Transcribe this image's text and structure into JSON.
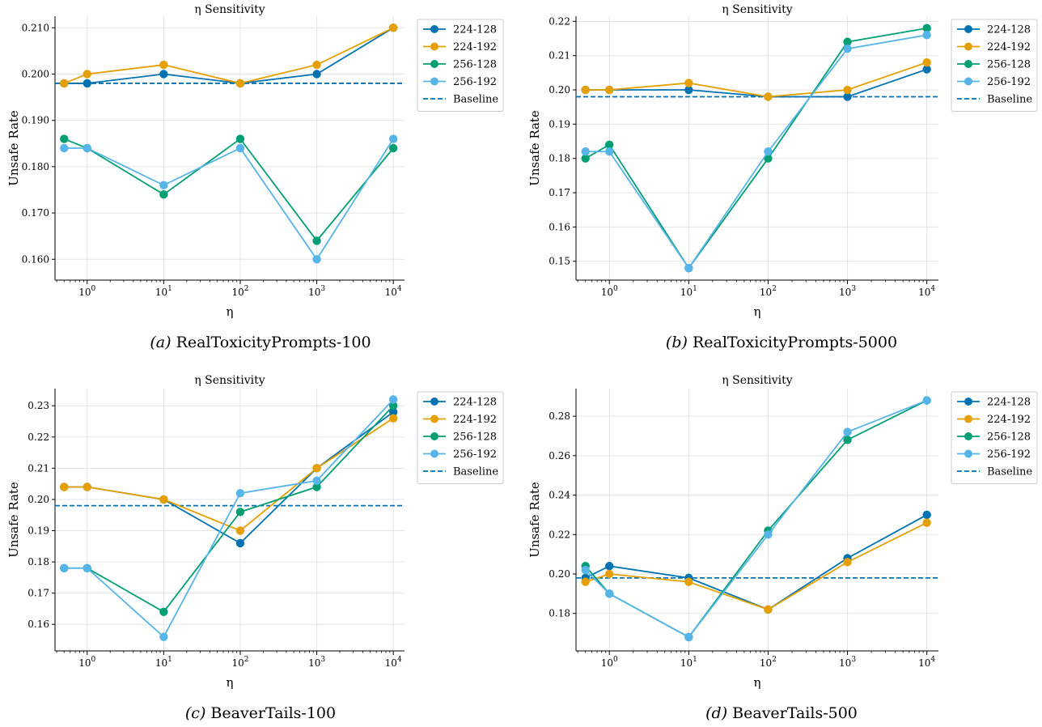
{
  "chart_data": [
    {
      "type": "line",
      "title": "η Sensitivity",
      "xlabel": "η",
      "ylabel": "Unsafe Rate",
      "x_scale": "log",
      "x": [
        0.5,
        1,
        10,
        100,
        1000,
        10000
      ],
      "xticks": [
        1,
        10,
        100,
        1000,
        10000
      ],
      "xtick_labels": [
        [
          "10",
          "0"
        ],
        [
          "10",
          "1"
        ],
        [
          "10",
          "2"
        ],
        [
          "10",
          "3"
        ],
        [
          "10",
          "4"
        ]
      ],
      "xlim": [
        0.38,
        14000
      ],
      "ylim": [
        0.1555,
        0.2125
      ],
      "yticks": [
        0.16,
        0.17,
        0.18,
        0.19,
        0.2,
        0.21
      ],
      "ytick_labels": [
        "0.160",
        "0.170",
        "0.180",
        "0.190",
        "0.200",
        "0.210"
      ],
      "legend_position": "outside-top-right",
      "baseline": {
        "name": "Baseline",
        "value": 0.198
      },
      "series": [
        {
          "name": "224-128",
          "color": "#0072B2",
          "values": [
            0.198,
            0.198,
            0.2,
            0.198,
            0.2,
            0.21
          ]
        },
        {
          "name": "224-192",
          "color": "#E69F00",
          "values": [
            0.198,
            0.2,
            0.202,
            0.198,
            0.202,
            0.21
          ]
        },
        {
          "name": "256-128",
          "color": "#009E73",
          "values": [
            0.186,
            0.184,
            0.174,
            0.186,
            0.164,
            0.184
          ]
        },
        {
          "name": "256-192",
          "color": "#56B4E9",
          "values": [
            0.184,
            0.184,
            0.176,
            0.184,
            0.16,
            0.186
          ]
        }
      ],
      "caption_letter": "(a)",
      "caption_text": " RealToxicityPrompts-100"
    },
    {
      "type": "line",
      "title": "η Sensitivity",
      "xlabel": "η",
      "ylabel": "Unsafe Rate",
      "x_scale": "log",
      "x": [
        0.5,
        1,
        10,
        100,
        1000,
        10000
      ],
      "xticks": [
        1,
        10,
        100,
        1000,
        10000
      ],
      "xtick_labels": [
        [
          "10",
          "0"
        ],
        [
          "10",
          "1"
        ],
        [
          "10",
          "2"
        ],
        [
          "10",
          "3"
        ],
        [
          "10",
          "4"
        ]
      ],
      "xlim": [
        0.38,
        14000
      ],
      "ylim": [
        0.1445,
        0.2215
      ],
      "yticks": [
        0.15,
        0.16,
        0.17,
        0.18,
        0.19,
        0.2,
        0.21,
        0.22
      ],
      "ytick_labels": [
        "0.15",
        "0.16",
        "0.17",
        "0.18",
        "0.19",
        "0.20",
        "0.21",
        "0.22"
      ],
      "legend_position": "outside-top-right",
      "baseline": {
        "name": "Baseline",
        "value": 0.198
      },
      "series": [
        {
          "name": "224-128",
          "color": "#0072B2",
          "values": [
            0.2,
            0.2,
            0.2,
            0.198,
            0.198,
            0.206
          ]
        },
        {
          "name": "224-192",
          "color": "#E69F00",
          "values": [
            0.2,
            0.2,
            0.202,
            0.198,
            0.2,
            0.208
          ]
        },
        {
          "name": "256-128",
          "color": "#009E73",
          "values": [
            0.18,
            0.184,
            0.148,
            0.18,
            0.214,
            0.218
          ]
        },
        {
          "name": "256-192",
          "color": "#56B4E9",
          "values": [
            0.182,
            0.182,
            0.148,
            0.182,
            0.212,
            0.216
          ]
        }
      ],
      "caption_letter": "(b)",
      "caption_text": " RealToxicityPrompts-5000"
    },
    {
      "type": "line",
      "title": "η Sensitivity",
      "xlabel": "η",
      "ylabel": "Unsafe Rate",
      "x_scale": "log",
      "x": [
        0.5,
        1,
        10,
        100,
        1000,
        10000
      ],
      "xticks": [
        1,
        10,
        100,
        1000,
        10000
      ],
      "xtick_labels": [
        [
          "10",
          "0"
        ],
        [
          "10",
          "1"
        ],
        [
          "10",
          "2"
        ],
        [
          "10",
          "3"
        ],
        [
          "10",
          "4"
        ]
      ],
      "xlim": [
        0.38,
        14000
      ],
      "ylim": [
        0.1515,
        0.2355
      ],
      "yticks": [
        0.16,
        0.17,
        0.18,
        0.19,
        0.2,
        0.21,
        0.22,
        0.23
      ],
      "ytick_labels": [
        "0.16",
        "0.17",
        "0.18",
        "0.19",
        "0.20",
        "0.21",
        "0.22",
        "0.23"
      ],
      "legend_position": "outside-top-right",
      "baseline": {
        "name": "Baseline",
        "value": 0.198
      },
      "series": [
        {
          "name": "224-128",
          "color": "#0072B2",
          "values": [
            0.204,
            0.204,
            0.2,
            0.186,
            0.21,
            0.228
          ]
        },
        {
          "name": "224-192",
          "color": "#E69F00",
          "values": [
            0.204,
            0.204,
            0.2,
            0.19,
            0.21,
            0.226
          ]
        },
        {
          "name": "256-128",
          "color": "#009E73",
          "values": [
            0.178,
            0.178,
            0.164,
            0.196,
            0.204,
            0.23
          ]
        },
        {
          "name": "256-192",
          "color": "#56B4E9",
          "values": [
            0.178,
            0.178,
            0.156,
            0.202,
            0.206,
            0.232
          ]
        }
      ],
      "caption_letter": "(c)",
      "caption_text": " BeaverTails-100"
    },
    {
      "type": "line",
      "title": "η Sensitivity",
      "xlabel": "η",
      "ylabel": "Unsafe Rate",
      "x_scale": "log",
      "x": [
        0.5,
        1,
        10,
        100,
        1000,
        10000
      ],
      "xticks": [
        1,
        10,
        100,
        1000,
        10000
      ],
      "xtick_labels": [
        [
          "10",
          "0"
        ],
        [
          "10",
          "1"
        ],
        [
          "10",
          "2"
        ],
        [
          "10",
          "3"
        ],
        [
          "10",
          "4"
        ]
      ],
      "xlim": [
        0.38,
        14000
      ],
      "ylim": [
        0.161,
        0.294
      ],
      "yticks": [
        0.18,
        0.2,
        0.22,
        0.24,
        0.26,
        0.28
      ],
      "ytick_labels": [
        "0.18",
        "0.20",
        "0.22",
        "0.24",
        "0.26",
        "0.28"
      ],
      "legend_position": "outside-top-right",
      "baseline": {
        "name": "Baseline",
        "value": 0.198
      },
      "series": [
        {
          "name": "224-128",
          "color": "#0072B2",
          "values": [
            0.198,
            0.204,
            0.198,
            0.182,
            0.208,
            0.23
          ]
        },
        {
          "name": "224-192",
          "color": "#E69F00",
          "values": [
            0.196,
            0.2,
            0.196,
            0.182,
            0.206,
            0.226
          ]
        },
        {
          "name": "256-128",
          "color": "#009E73",
          "values": [
            0.204,
            0.19,
            0.168,
            0.222,
            0.268,
            0.288
          ]
        },
        {
          "name": "256-192",
          "color": "#56B4E9",
          "values": [
            0.202,
            0.19,
            0.168,
            0.22,
            0.272,
            0.288
          ]
        }
      ],
      "caption_letter": "(d)",
      "caption_text": " BeaverTails-500"
    }
  ]
}
